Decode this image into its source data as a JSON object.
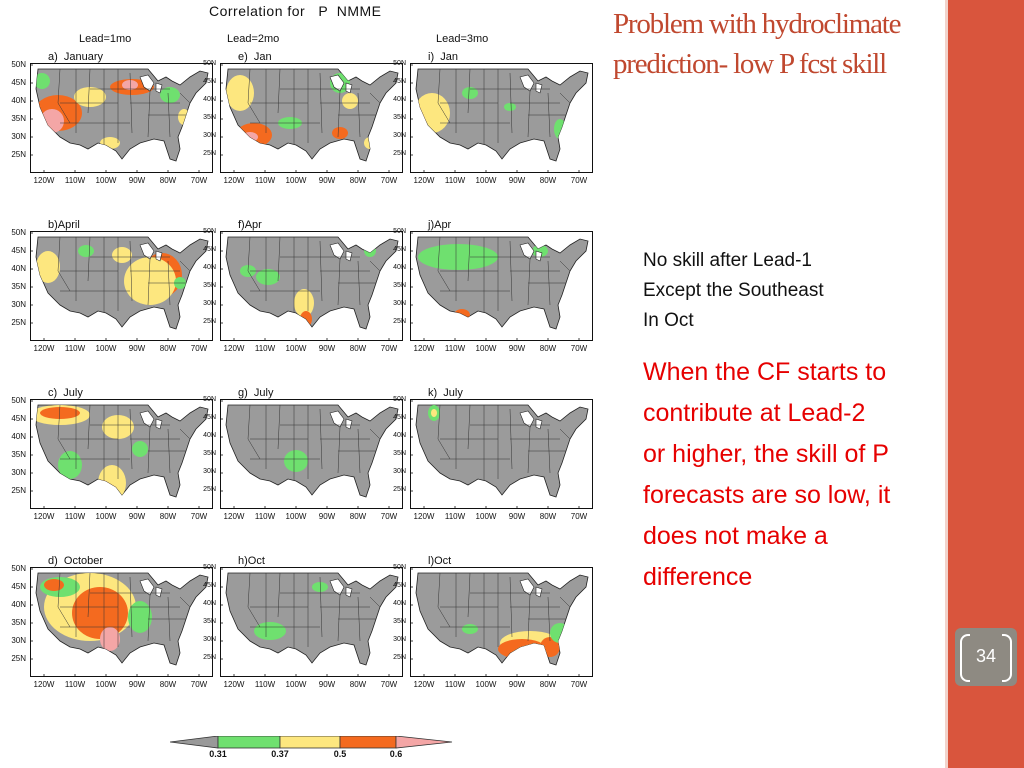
{
  "slide": {
    "title": "Problem with hydroclimate prediction- low P fcst skill",
    "note_lines": [
      "No skill after Lead-1",
      "Except the Southeast",
      "In Oct"
    ],
    "highlight": "When the CF starts to contribute at Lead-2 or higher, the skill of P forecasts are so low, it does not make a difference",
    "page_number": "34"
  },
  "figure": {
    "title": "Correlation for   P  NMME",
    "lead_headers": [
      "Lead=1mo",
      "Lead=2mo",
      "Lead=3mo"
    ],
    "lat_labels": [
      "50N",
      "45N",
      "40N",
      "35N",
      "30N",
      "25N"
    ],
    "lon_labels": [
      "120W",
      "110W",
      "100W",
      "90W",
      "80W",
      "70W"
    ],
    "panels": [
      {
        "title": "a)  January",
        "month": "January",
        "lead": 1
      },
      {
        "title": "e)  Jan",
        "month": "January",
        "lead": 2
      },
      {
        "title": "i)  Jan",
        "month": "January",
        "lead": 3
      },
      {
        "title": "b)April",
        "month": "April",
        "lead": 1
      },
      {
        "title": "f)Apr",
        "month": "April",
        "lead": 2
      },
      {
        "title": "j)Apr",
        "month": "April",
        "lead": 3
      },
      {
        "title": "c)  July",
        "month": "July",
        "lead": 1
      },
      {
        "title": "g)  July",
        "month": "July",
        "lead": 2
      },
      {
        "title": "k)  July",
        "month": "July",
        "lead": 3
      },
      {
        "title": "d)  October",
        "month": "October",
        "lead": 1
      },
      {
        "title": "h)Oct",
        "month": "October",
        "lead": 2
      },
      {
        "title": "l)Oct",
        "month": "October",
        "lead": 3
      }
    ],
    "colorbar": {
      "ticks": [
        "0.31",
        "0.37",
        "0.5",
        "0.6"
      ],
      "colors": [
        "#999999",
        "#6fe06f",
        "#fde77f",
        "#f46a1f",
        "#f4a6a6"
      ]
    },
    "colors": {
      "land_gray": "#9b9b9b",
      "green": "#6fe06f",
      "yellow": "#fde77f",
      "orange": "#f46a1f",
      "pink": "#f4a6a6",
      "accent_red": "#d9553d",
      "title_red": "#c0482f",
      "highlight_red": "#e60000"
    }
  }
}
